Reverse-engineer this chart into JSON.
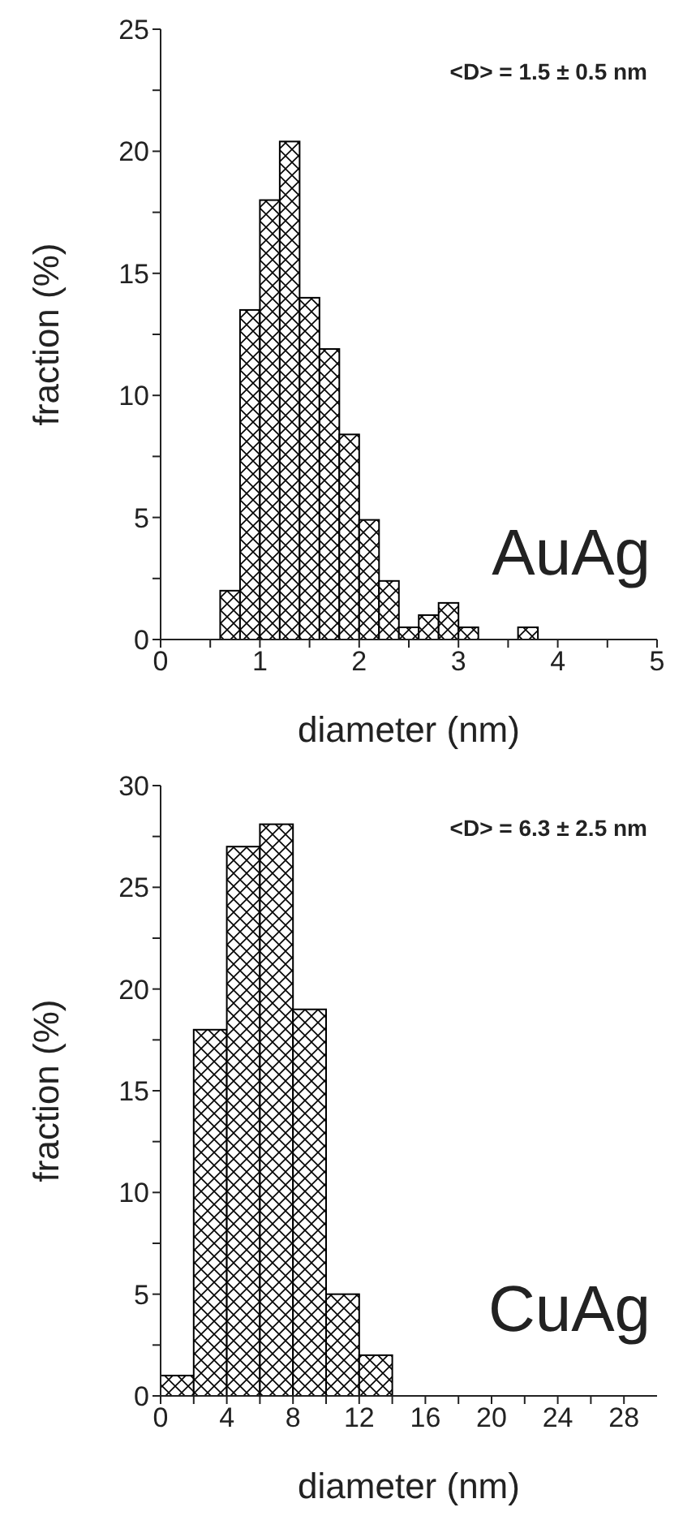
{
  "chart_data": [
    {
      "type": "histogram",
      "xlabel": "diameter (nm)",
      "ylabel": "fraction (%)",
      "color": "#000000",
      "bins": [
        0.6,
        0.8,
        1.0,
        1.2,
        1.4,
        1.6,
        1.8,
        2.0,
        2.2,
        2.4,
        2.6,
        2.8,
        3.0,
        3.2,
        3.4,
        3.6,
        3.8
      ],
      "values": [
        2,
        13.5,
        18,
        20.4,
        14,
        11.9,
        8.4,
        4.9,
        2.4,
        0.5,
        1,
        1.5,
        0.5,
        0,
        0,
        0.5
      ],
      "xlim": [
        0,
        5
      ],
      "xticks": [
        0,
        {
          "value": 0.5,
          "label": null
        },
        1,
        {
          "value": 1.5,
          "label": null
        },
        2,
        {
          "value": 2.5,
          "label": null
        },
        3,
        {
          "value": 3.5,
          "label": null
        },
        4,
        {
          "value": 4.5,
          "label": null
        },
        5
      ],
      "ylim": [
        0,
        25
      ],
      "yticks": [
        0,
        {
          "value": 2.5,
          "label": null
        },
        5,
        {
          "value": 7.5,
          "label": null
        },
        10,
        {
          "value": 12.5,
          "label": null
        },
        15,
        {
          "value": 17.5,
          "label": null
        },
        20,
        {
          "value": 22.5,
          "label": null
        },
        25
      ],
      "annotations": [
        "<D> = 1.5 ± 0.5 nm",
        "AuAg"
      ]
    },
    {
      "type": "histogram",
      "xlabel": "diameter (nm)",
      "ylabel": "fraction (%)",
      "color": "#000000",
      "bins": [
        0,
        2,
        4,
        6,
        8,
        10,
        12,
        14
      ],
      "values": [
        1,
        18,
        27,
        28.1,
        19,
        5,
        2
      ],
      "xlim": [
        0,
        30
      ],
      "xticks": [
        0,
        {
          "value": 2,
          "label": null
        },
        4,
        {
          "value": 6,
          "label": null
        },
        8,
        {
          "value": 10,
          "label": null
        },
        12,
        {
          "value": 14,
          "label": null
        },
        16,
        {
          "value": 18,
          "label": null
        },
        20,
        {
          "value": 22,
          "label": null
        },
        24,
        {
          "value": 26,
          "label": null
        },
        28
      ],
      "ylim": [
        0,
        30
      ],
      "yticks": [
        0,
        {
          "value": 2.5,
          "label": null
        },
        5,
        {
          "value": 7.5,
          "label": null
        },
        10,
        {
          "value": 12.5,
          "label": null
        },
        15,
        {
          "value": 17.5,
          "label": null
        },
        20,
        {
          "value": 22.5,
          "label": null
        },
        25,
        {
          "value": 27.5,
          "label": null
        },
        30
      ],
      "annotations": [
        "<D> = 6.3 ± 2.5 nm",
        "CuAg"
      ]
    }
  ]
}
